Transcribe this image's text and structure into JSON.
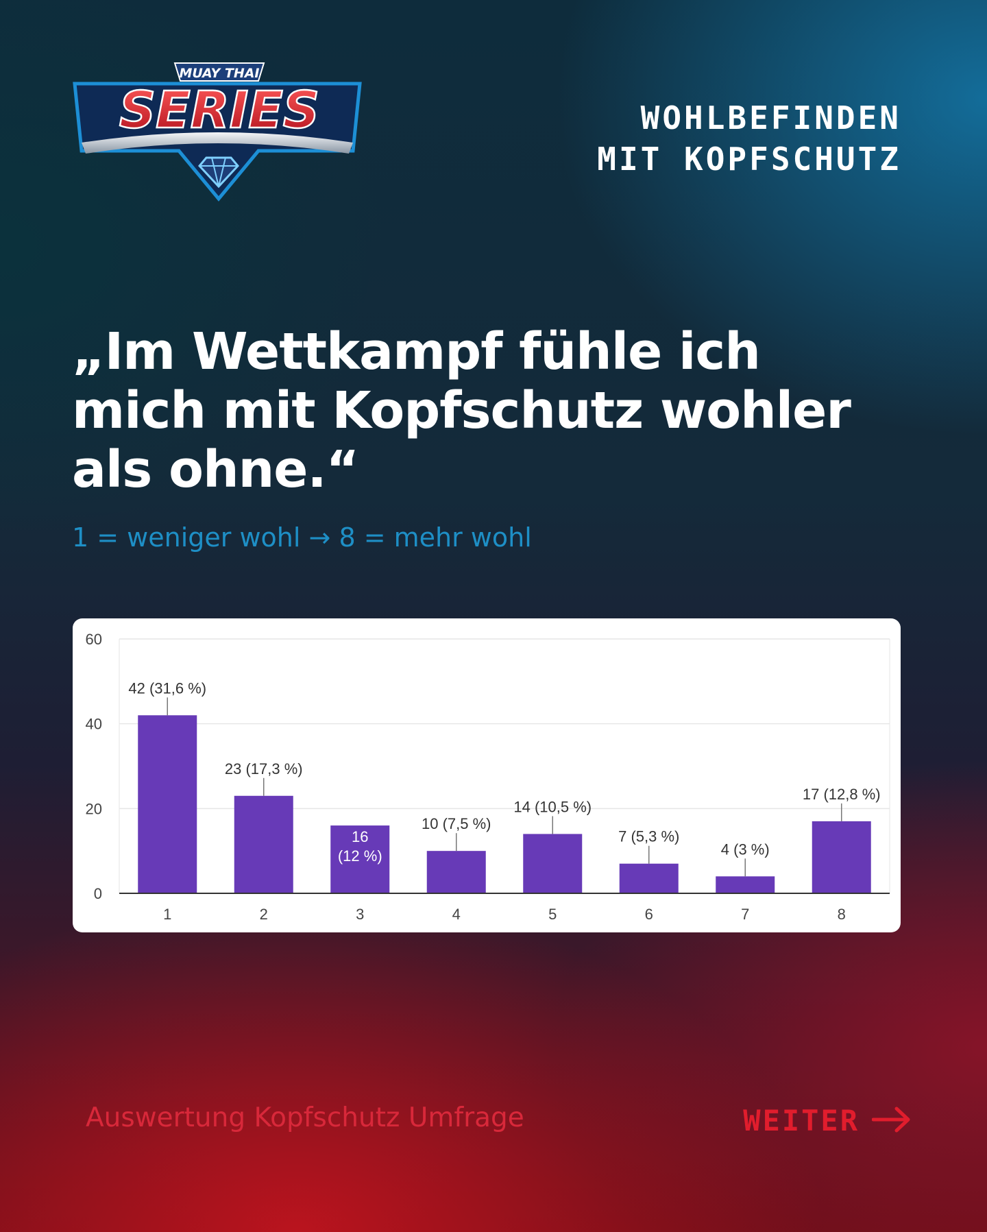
{
  "brand": {
    "top_text": "MUAY THAI",
    "main_text": "SERIES"
  },
  "corner_title": "WOHLBEFINDEN\nMIT KOPFSCHUTZ",
  "headline": "„Im Wettkampf fühle ich mich mit Kopfschutz wohler als ohne.“",
  "scale_note": "1 = weniger wohl → 8 = mehr wohl",
  "footer": {
    "left": "Auswertung Kopfschutz Umfrage",
    "right": "WEITER",
    "arrow_icon": "arrow-right-icon"
  },
  "colors": {
    "bar": "#673ab7",
    "accent_blue": "#1e8fc6",
    "accent_red": "#e11d2d"
  },
  "chart_data": {
    "type": "bar",
    "categories": [
      "1",
      "2",
      "3",
      "4",
      "5",
      "6",
      "7",
      "8"
    ],
    "values": [
      42,
      23,
      16,
      10,
      14,
      7,
      4,
      17
    ],
    "data_labels": [
      "42 (31,6 %)",
      "23 (17,3 %)",
      "16 (12 %)",
      "10 (7,5 %)",
      "14 (10,5 %)",
      "7 (5,3 %)",
      "4 (3 %)",
      "17 (12,8 %)"
    ],
    "yticks": [
      0,
      20,
      40,
      60
    ],
    "ylim": [
      0,
      60
    ],
    "grid": true
  }
}
